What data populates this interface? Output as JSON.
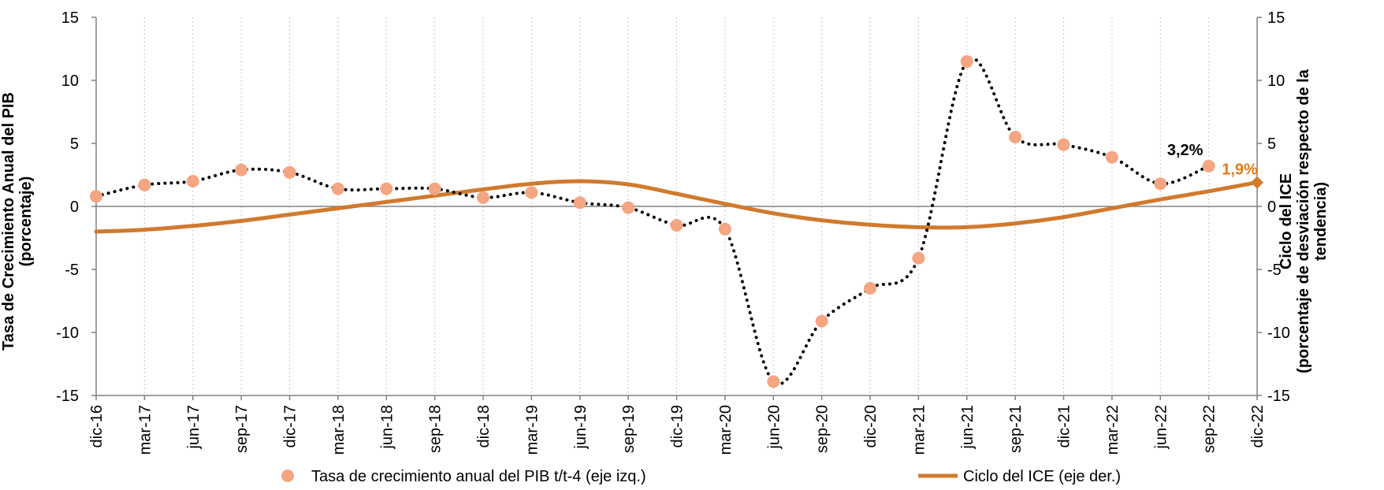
{
  "chart_data": {
    "type": "line",
    "categories": [
      "dic-16",
      "mar-17",
      "jun-17",
      "sep-17",
      "dic-17",
      "mar-18",
      "jun-18",
      "sep-18",
      "dic-18",
      "mar-19",
      "jun-19",
      "sep-19",
      "dic-19",
      "mar-20",
      "jun-20",
      "sep-20",
      "dic-20",
      "mar-21",
      "jun-21",
      "sep-21",
      "dic-21",
      "mar-22",
      "jun-22",
      "sep-22",
      "dic-22"
    ],
    "series": [
      {
        "name": "Tasa de crecimiento anual del PIB  t/t-4 (eje izq.)",
        "axis": "left",
        "style": "dotted-markers",
        "color": "#F4A582",
        "values": [
          0.8,
          1.7,
          2.0,
          2.9,
          2.7,
          1.4,
          1.4,
          1.4,
          0.7,
          1.1,
          0.3,
          -0.1,
          -1.5,
          -1.8,
          -13.9,
          -9.1,
          -6.5,
          -4.1,
          11.5,
          5.5,
          4.9,
          3.9,
          1.8,
          3.2,
          null
        ]
      },
      {
        "name": "Ciclo del ICE (eje der.)",
        "axis": "right",
        "style": "line",
        "color": "#D07A2E",
        "values": [
          -2.0,
          -1.85,
          -1.55,
          -1.15,
          -0.65,
          -0.15,
          0.35,
          0.85,
          1.35,
          1.8,
          2.0,
          1.75,
          1.0,
          0.2,
          -0.55,
          -1.1,
          -1.45,
          -1.65,
          -1.65,
          -1.35,
          -0.85,
          -0.15,
          0.55,
          1.2,
          1.9
        ]
      }
    ],
    "ylim_left": [
      -15,
      15
    ],
    "ylim_right": [
      -15,
      15
    ],
    "yticks": [
      15,
      10,
      5,
      0,
      -5,
      -10,
      -15
    ],
    "ylabel_left": [
      "Tasa de Crecimiento Anual del PIB",
      "(porcentaje)"
    ],
    "ylabel_right": [
      "Ciclo del ICE",
      "(porcentaje de desviación respecto de la",
      "tendencia)"
    ],
    "annotations": [
      {
        "text": "3,2%",
        "series": 0,
        "index": 23,
        "color": "#000000"
      },
      {
        "text": "1,9%",
        "series": 1,
        "index": 24,
        "color": "#E07B1F"
      }
    ],
    "grid": "vertical-dotted",
    "legend_position": "bottom"
  }
}
